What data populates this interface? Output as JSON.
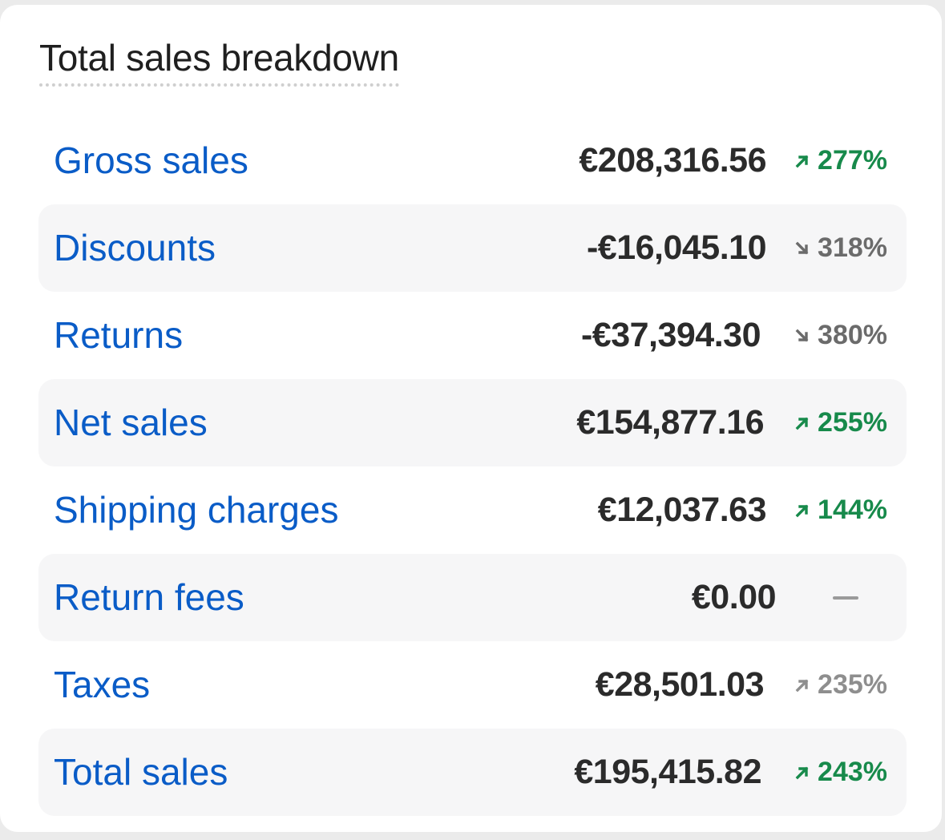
{
  "card": {
    "title": "Total sales breakdown"
  },
  "rows": [
    {
      "label": "Gross sales",
      "value": "€208,316.56",
      "change": "277%",
      "trend": "up",
      "trend_color": "#178a4b"
    },
    {
      "label": "Discounts",
      "value": "-€16,045.10",
      "change": "318%",
      "trend": "down",
      "trend_color": "#6b6b6b"
    },
    {
      "label": "Returns",
      "value": "-€37,394.30",
      "change": "380%",
      "trend": "down",
      "trend_color": "#6b6b6b"
    },
    {
      "label": "Net sales",
      "value": "€154,877.16",
      "change": "255%",
      "trend": "up",
      "trend_color": "#178a4b"
    },
    {
      "label": "Shipping charges",
      "value": "€12,037.63",
      "change": "144%",
      "trend": "up",
      "trend_color": "#178a4b"
    },
    {
      "label": "Return fees",
      "value": "€0.00",
      "change": "—",
      "trend": "none",
      "trend_color": "#9a9a9a"
    },
    {
      "label": "Taxes",
      "value": "€28,501.03",
      "change": "235%",
      "trend": "up-muted",
      "trend_color": "#8e8e8e"
    },
    {
      "label": "Total sales",
      "value": "€195,415.82",
      "change": "243%",
      "trend": "up",
      "trend_color": "#178a4b"
    }
  ],
  "colors": {
    "label_link": "#0a5cc7",
    "value_text": "#2b2b2b",
    "row_shade": "#f6f6f7",
    "card_bg": "#ffffff",
    "page_bg": "#ebebeb"
  },
  "icons": {
    "up": "arrow-up-right-icon",
    "down": "arrow-down-right-icon",
    "none": "dash-icon"
  }
}
